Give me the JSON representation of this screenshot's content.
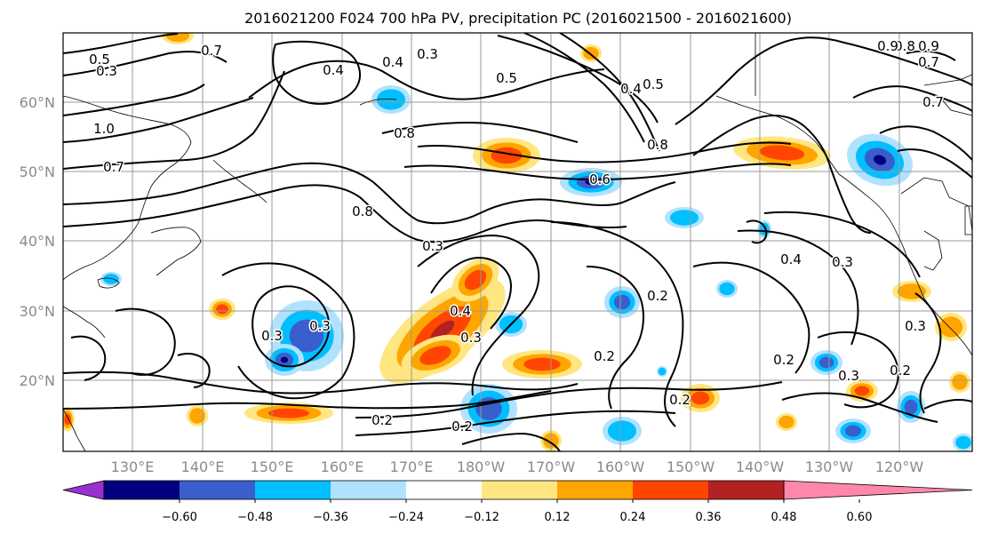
{
  "title": "2016021200 F024 700 hPa PV, precipitation PC (2016021500 - 2016021600)",
  "map": {
    "lat_labels": [
      "60°N",
      "50°N",
      "40°N",
      "30°N",
      "20°N"
    ],
    "lon_labels": [
      "130°E",
      "140°E",
      "150°E",
      "160°E",
      "170°E",
      "180°W",
      "170°W",
      "160°W",
      "150°W",
      "140°W",
      "130°W",
      "120°W"
    ],
    "contour_labels": [
      "0.5",
      "0.7",
      "0.3",
      "0.4",
      "0.4",
      "0.3",
      "0.5",
      "0.4",
      "0.5",
      "0.8",
      "0.9",
      "0.7",
      "0.9",
      "1.0",
      "0.7",
      "0.8",
      "0.6",
      "0.8",
      "0.8",
      "0.3",
      "0.4",
      "0.3",
      "0.3",
      "0.2",
      "0.3",
      "0.2",
      "0.2",
      "0.2",
      "0.2",
      "0.3",
      "0.2",
      "0.2",
      "0.3",
      "0.4",
      "0.7",
      "0.3"
    ],
    "grid": true
  },
  "colorbar": {
    "ticks": [
      "−0.60",
      "−0.48",
      "−0.36",
      "−0.24",
      "−0.12",
      "0.12",
      "0.24",
      "0.36",
      "0.48",
      "0.60"
    ],
    "colors": [
      "#9b30d0",
      "#000080",
      "#3a5fcd",
      "#00bfff",
      "#b0e2ff",
      "#ffffff",
      "#ffe680",
      "#ffa500",
      "#ff4500",
      "#b22222",
      "#ff88aa"
    ]
  },
  "fill_colors": {
    "pos1": "#ffe680",
    "pos2": "#ffa500",
    "pos3": "#ff4500",
    "pos4": "#b22222",
    "neg1": "#b0e2ff",
    "neg2": "#00bfff",
    "neg3": "#3a5fcd",
    "neg4": "#000080"
  }
}
